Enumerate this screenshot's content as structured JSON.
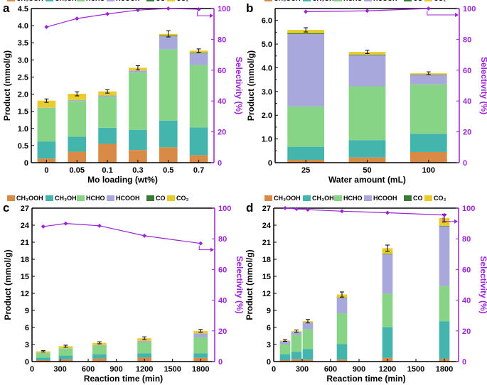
{
  "colors": {
    "CH3OOH": "#d98a46",
    "CH3OH": "#43b5ad",
    "HCHO": "#87d487",
    "HCOOH": "#a8a8dc",
    "CO": "#3a7a37",
    "CO2": "#e9cc2c",
    "selectivity": "#9b24d8"
  },
  "legend": {
    "labels": [
      "CH₃OOH",
      "CH₃OH",
      "HCHO",
      "HCOOH",
      "CO",
      "CO₂"
    ],
    "keys": [
      "CH3OOH",
      "CH3OH",
      "HCHO",
      "HCOOH",
      "CO",
      "CO2"
    ]
  },
  "chart_data": [
    {
      "id": "a",
      "panel_label": "a",
      "type": "bar",
      "stacked": true,
      "xlabel": "Mo loading (wt%)",
      "ylabel": "Product (mmol/g)",
      "ylabel2": "Selectivity (%)",
      "categories": [
        "0",
        "0.05",
        "0.1",
        "0.3",
        "0.5",
        "0.7"
      ],
      "ylim": [
        0,
        4.5
      ],
      "yticks": [
        "0",
        "0.5",
        "1.0",
        "1.5",
        "2.0",
        "2.5",
        "3.0",
        "3.5",
        "4.0",
        "4.5"
      ],
      "y2lim": [
        0,
        100
      ],
      "y2ticks": [
        "0",
        "20",
        "40",
        "60",
        "80",
        "100"
      ],
      "series": [
        {
          "key": "CH3OOH",
          "name": "CH₃OOH",
          "values": [
            0.12,
            0.32,
            0.55,
            0.37,
            0.45,
            0.22
          ]
        },
        {
          "key": "CH3OH",
          "name": "CH₃OH",
          "values": [
            0.5,
            0.44,
            0.47,
            0.59,
            0.78,
            0.81
          ]
        },
        {
          "key": "HCHO",
          "name": "HCHO",
          "values": [
            0.98,
            1.04,
            0.9,
            1.67,
            2.08,
            1.82
          ]
        },
        {
          "key": "HCOOH",
          "name": "HCOOH",
          "values": [
            0.01,
            0.03,
            0.04,
            0.06,
            0.38,
            0.34
          ]
        },
        {
          "key": "CO",
          "name": "CO",
          "values": [
            0.0,
            0.0,
            0.0,
            0.0,
            0.02,
            0.02
          ]
        },
        {
          "key": "CO2",
          "name": "CO₂",
          "values": [
            0.2,
            0.18,
            0.12,
            0.08,
            0.05,
            0.06
          ]
        }
      ],
      "error": [
        0.05,
        0.06,
        0.05,
        0.06,
        0.09,
        0.05
      ],
      "selectivity": [
        88,
        93.5,
        96.5,
        99,
        100,
        99.5
      ]
    },
    {
      "id": "b",
      "panel_label": "b",
      "type": "bar",
      "stacked": true,
      "xlabel": "Water amount (mL)",
      "ylabel": "Product (mmol/g)",
      "ylabel2": "Selectivity (%)",
      "categories": [
        "25",
        "50",
        "100"
      ],
      "ylim": [
        0,
        6.5
      ],
      "yticks": [
        "0",
        "1.0",
        "2.0",
        "3.0",
        "4.0",
        "5.0",
        "6.0"
      ],
      "yticks_minor": [
        0.5,
        1.5,
        2.5,
        3.5,
        4.5,
        5.5
      ],
      "y2lim": [
        0,
        100
      ],
      "y2ticks": [
        "0",
        "20",
        "40",
        "60",
        "80",
        "100"
      ],
      "series": [
        {
          "key": "CH3OOH",
          "name": "CH₃OOH",
          "values": [
            0.12,
            0.22,
            0.45
          ]
        },
        {
          "key": "CH3OH",
          "name": "CH₃OH",
          "values": [
            0.55,
            0.73,
            0.77
          ]
        },
        {
          "key": "HCHO",
          "name": "HCHO",
          "values": [
            1.7,
            2.27,
            2.08
          ]
        },
        {
          "key": "HCOOH",
          "name": "HCOOH",
          "values": [
            3.05,
            1.31,
            0.4
          ]
        },
        {
          "key": "CO",
          "name": "CO",
          "values": [
            0.04,
            0.03,
            0.02
          ]
        },
        {
          "key": "CO2",
          "name": "CO₂",
          "values": [
            0.14,
            0.11,
            0.05
          ]
        }
      ],
      "error": [
        0.09,
        0.07,
        0.06
      ],
      "selectivity": [
        98,
        98.5,
        100
      ]
    },
    {
      "id": "c",
      "panel_label": "c",
      "type": "bar",
      "stacked": true,
      "numeric_x": true,
      "bar_width": 150,
      "xlabel": "Reaction time (min)",
      "ylabel": "Product (mmol/g)",
      "ylabel2": "Selectivity (%)",
      "x": [
        120,
        360,
        720,
        1200,
        1800
      ],
      "xlim": [
        0,
        1950
      ],
      "xticks": [
        "0",
        "300",
        "600",
        "900",
        "1200",
        "1500",
        "1800"
      ],
      "ylim": [
        0,
        27
      ],
      "yticks": [
        "0",
        "3",
        "6",
        "9",
        "12",
        "15",
        "18",
        "21",
        "24",
        "27"
      ],
      "y2lim": [
        0,
        100
      ],
      "y2ticks": [
        "0",
        "20",
        "40",
        "60",
        "80",
        "100"
      ],
      "series": [
        {
          "key": "CH3OOH",
          "name": "CH₃OOH",
          "values": [
            0.25,
            0.4,
            0.55,
            0.7,
            0.65
          ]
        },
        {
          "key": "CH3OH",
          "name": "CH₃OH",
          "values": [
            0.45,
            0.65,
            0.7,
            0.75,
            0.8
          ]
        },
        {
          "key": "HCHO",
          "name": "HCHO",
          "values": [
            0.8,
            1.25,
            1.55,
            1.95,
            2.8
          ]
        },
        {
          "key": "HCOOH",
          "name": "HCOOH",
          "values": [
            0.05,
            0.05,
            0.1,
            0.25,
            0.7
          ]
        },
        {
          "key": "CO",
          "name": "CO",
          "values": [
            0.0,
            0.0,
            0.0,
            0.0,
            0.0
          ]
        },
        {
          "key": "CO2",
          "name": "CO₂",
          "values": [
            0.25,
            0.35,
            0.4,
            0.45,
            0.45
          ]
        }
      ],
      "error": [
        0.12,
        0.18,
        0.18,
        0.25,
        0.25
      ],
      "selectivity": [
        88,
        90,
        88.5,
        82,
        77
      ]
    },
    {
      "id": "d",
      "panel_label": "d",
      "type": "bar",
      "stacked": true,
      "numeric_x": true,
      "bar_width": 110,
      "xlabel": "Reaction time (min)",
      "ylabel": "Product (mmol/g)",
      "ylabel2": "Selectivity (%)",
      "x": [
        120,
        240,
        360,
        720,
        1200,
        1800
      ],
      "xlim": [
        0,
        1950
      ],
      "xticks": [
        "0",
        "300",
        "600",
        "900",
        "1200",
        "1500",
        "1800"
      ],
      "ylim": [
        0,
        27
      ],
      "yticks": [
        "0",
        "3",
        "6",
        "9",
        "12",
        "15",
        "18",
        "21",
        "24",
        "27"
      ],
      "y2lim": [
        0,
        100
      ],
      "y2ticks": [
        "0",
        "20",
        "40",
        "60",
        "80",
        "100"
      ],
      "series": [
        {
          "key": "CH3OOH",
          "name": "CH₃OOH",
          "values": [
            0.25,
            0.4,
            0.35,
            0.35,
            0.65,
            0.5
          ]
        },
        {
          "key": "CH3OH",
          "name": "CH₃OH",
          "values": [
            1.0,
            1.3,
            1.85,
            2.75,
            5.4,
            6.6
          ]
        },
        {
          "key": "HCHO",
          "name": "HCHO",
          "values": [
            1.75,
            3.0,
            3.5,
            5.4,
            5.9,
            6.2
          ]
        },
        {
          "key": "HCOOH",
          "name": "HCOOH",
          "values": [
            0.6,
            0.5,
            1.2,
            2.7,
            6.9,
            10.5
          ]
        },
        {
          "key": "CO",
          "name": "CO",
          "values": [
            0.0,
            0.0,
            0.0,
            0.05,
            0.1,
            0.1
          ]
        },
        {
          "key": "CO2",
          "name": "CO₂",
          "values": [
            0.1,
            0.15,
            0.2,
            0.55,
            1.0,
            1.35
          ]
        }
      ],
      "error": [
        0.15,
        0.2,
        0.3,
        0.45,
        0.55,
        0.7
      ],
      "selectivity": [
        100,
        99.5,
        99,
        98,
        97,
        95.5
      ]
    }
  ]
}
